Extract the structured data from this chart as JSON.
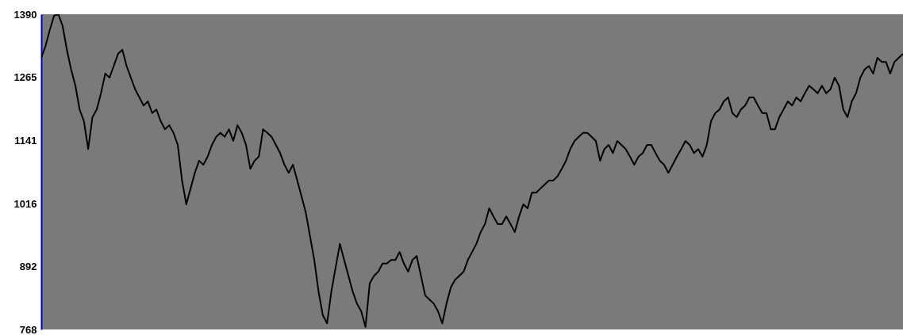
{
  "chart_data": {
    "type": "line",
    "tick_labels": "y",
    "categories": [
      null,
      null,
      null,
      null,
      null,
      null,
      null,
      null,
      null,
      null,
      null,
      null,
      null,
      null,
      null,
      null,
      null,
      null,
      null,
      null,
      null,
      null,
      null,
      null,
      null,
      null,
      null,
      null,
      null,
      null,
      null,
      null,
      null,
      null,
      null,
      null,
      null,
      null,
      null,
      null,
      null,
      null,
      null,
      null,
      null,
      null,
      null,
      null,
      null,
      null,
      null,
      null,
      null,
      null,
      null,
      null,
      null,
      null,
      null,
      null,
      null,
      null,
      null,
      null,
      null,
      null,
      null,
      null,
      null,
      null,
      null,
      null,
      null,
      null,
      null,
      null,
      null,
      null,
      null,
      null,
      null,
      null,
      null,
      null,
      null,
      null,
      null,
      null,
      null,
      null,
      null,
      null,
      null,
      null,
      null,
      null,
      null,
      null,
      null,
      null,
      null,
      null,
      null,
      null,
      null,
      null,
      null,
      null,
      null,
      null,
      null,
      null,
      null,
      null,
      null,
      null,
      null,
      null,
      null,
      null,
      null,
      null,
      null,
      null,
      null,
      null,
      null,
      null,
      null,
      null,
      null,
      null,
      null,
      null,
      null,
      null,
      null,
      null,
      null,
      null,
      null,
      null,
      null,
      null,
      null,
      null,
      null,
      null,
      null,
      null,
      null,
      null,
      null,
      null,
      null,
      null,
      null,
      null,
      null,
      null,
      null,
      null,
      null,
      null,
      null,
      null,
      null,
      null,
      null,
      null,
      null,
      null,
      null,
      null,
      null,
      null,
      null,
      null,
      null,
      null,
      null,
      null,
      null,
      null,
      null,
      null,
      null,
      null,
      null,
      null,
      null,
      null,
      null,
      null,
      null,
      null,
      null,
      null,
      null,
      null,
      null,
      null,
      null
    ],
    "series": [
      {
        "color": "#000000",
        "values": [
          1304,
          1327,
          1359,
          1387,
          1390,
          1367,
          1320,
          1281,
          1249,
          1202,
          1179,
          1124,
          1187,
          1202,
          1234,
          1273,
          1265,
          1288,
          1312,
          1320,
          1288,
          1265,
          1242,
          1226,
          1210,
          1218,
          1195,
          1202,
          1179,
          1163,
          1171,
          1156,
          1132,
          1062,
          1015,
          1046,
          1077,
          1101,
          1093,
          1109,
          1132,
          1148,
          1156,
          1148,
          1163,
          1140,
          1171,
          1156,
          1132,
          1085,
          1101,
          1109,
          1163,
          1156,
          1148,
          1132,
          1116,
          1093,
          1077,
          1093,
          1062,
          1031,
          999,
          952,
          905,
          843,
          796,
          780,
          843,
          890,
          937,
          905,
          874,
          843,
          819,
          804,
          773,
          859,
          874,
          882,
          898,
          898,
          905,
          905,
          921,
          898,
          882,
          905,
          913,
          874,
          835,
          827,
          819,
          804,
          780,
          819,
          851,
          866,
          874,
          882,
          905,
          921,
          937,
          960,
          976,
          1007,
          991,
          976,
          976,
          991,
          976,
          960,
          991,
          1015,
          1007,
          1038,
          1038,
          1046,
          1054,
          1062,
          1062,
          1070,
          1085,
          1101,
          1124,
          1140,
          1148,
          1156,
          1156,
          1148,
          1140,
          1101,
          1124,
          1132,
          1116,
          1140,
          1132,
          1124,
          1109,
          1093,
          1109,
          1116,
          1132,
          1132,
          1116,
          1101,
          1093,
          1077,
          1093,
          1109,
          1124,
          1140,
          1132,
          1116,
          1124,
          1109,
          1132,
          1179,
          1195,
          1202,
          1218,
          1226,
          1195,
          1187,
          1202,
          1210,
          1226,
          1226,
          1210,
          1195,
          1195,
          1163,
          1163,
          1187,
          1202,
          1218,
          1210,
          1226,
          1218,
          1234,
          1249,
          1242,
          1234,
          1249,
          1234,
          1242,
          1265,
          1249,
          1202,
          1187,
          1218,
          1234,
          1265,
          1281,
          1288,
          1273,
          1304,
          1296,
          1296,
          1273,
          1296,
          1304,
          1312
        ]
      }
    ],
    "ylim": [
      768,
      1390
    ],
    "yticks": [
      768,
      892,
      1016,
      1141,
      1265,
      1390
    ]
  }
}
